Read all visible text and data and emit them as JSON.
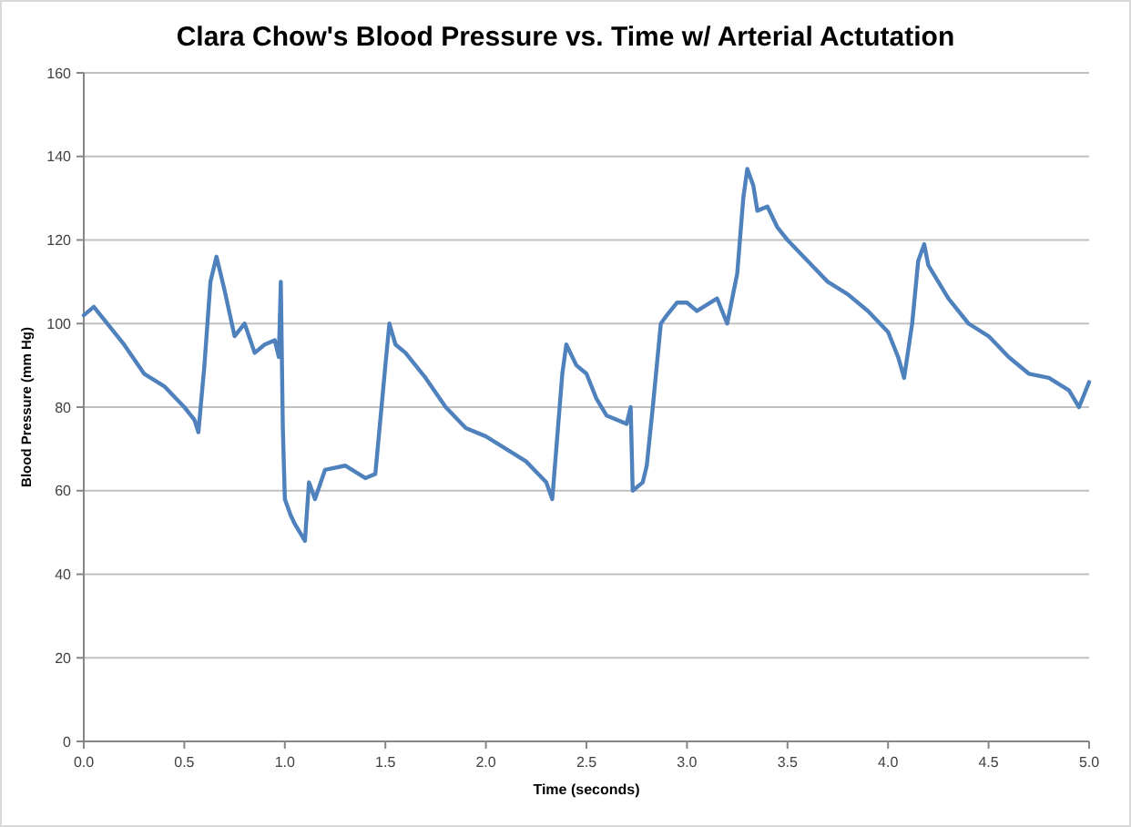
{
  "chart_data": {
    "type": "line",
    "title": "Clara Chow's Blood Pressure vs. Time w/ Arterial Actutation",
    "xlabel": "Time (seconds)",
    "ylabel": "Blood Pressure (mm Hg)",
    "x": [
      0,
      0.05,
      0.1,
      0.2,
      0.3,
      0.4,
      0.5,
      0.55,
      0.57,
      0.6,
      0.63,
      0.66,
      0.7,
      0.75,
      0.8,
      0.85,
      0.9,
      0.95,
      0.97,
      0.98,
      0.99,
      1.0,
      1.03,
      1.05,
      1.1,
      1.12,
      1.15,
      1.2,
      1.3,
      1.4,
      1.45,
      1.5,
      1.52,
      1.55,
      1.6,
      1.7,
      1.8,
      1.9,
      2.0,
      2.1,
      2.2,
      2.3,
      2.33,
      2.38,
      2.4,
      2.45,
      2.5,
      2.55,
      2.6,
      2.7,
      2.72,
      2.73,
      2.78,
      2.8,
      2.83,
      2.85,
      2.87,
      2.9,
      2.95,
      3.0,
      3.05,
      3.15,
      3.2,
      3.25,
      3.28,
      3.3,
      3.33,
      3.35,
      3.4,
      3.45,
      3.5,
      3.6,
      3.7,
      3.8,
      3.9,
      4.0,
      4.05,
      4.08,
      4.12,
      4.15,
      4.18,
      4.2,
      4.3,
      4.4,
      4.5,
      4.6,
      4.7,
      4.8,
      4.9,
      4.95,
      5.0
    ],
    "series": [
      {
        "color": "#4f81bd",
        "values": [
          102,
          104,
          101,
          95,
          88,
          85,
          80,
          77,
          74,
          90,
          110,
          116,
          108,
          97,
          100,
          93,
          95,
          96,
          92,
          110,
          75,
          58,
          54,
          52,
          48,
          62,
          58,
          65,
          66,
          63,
          64,
          90,
          100,
          95,
          93,
          87,
          80,
          75,
          73,
          70,
          67,
          62,
          58,
          88,
          95,
          90,
          88,
          82,
          78,
          76,
          80,
          60,
          62,
          66,
          80,
          90,
          100,
          102,
          105,
          105,
          103,
          106,
          100,
          112,
          130,
          137,
          133,
          127,
          128,
          123,
          120,
          115,
          110,
          107,
          103,
          98,
          92,
          87,
          100,
          115,
          119,
          114,
          106,
          100,
          97,
          92,
          88,
          87,
          84,
          80,
          86
        ]
      }
    ],
    "xlim": [
      0,
      5
    ],
    "xticks": [
      {
        "value": 0,
        "label": "0.0"
      },
      {
        "value": 0.5,
        "label": "0.5"
      },
      {
        "value": 1,
        "label": "1.0"
      },
      {
        "value": 1.5,
        "label": "1.5"
      },
      {
        "value": 2,
        "label": "2.0"
      },
      {
        "value": 2.5,
        "label": "2.5"
      },
      {
        "value": 3,
        "label": "3.0"
      },
      {
        "value": 3.5,
        "label": "3.5"
      },
      {
        "value": 4,
        "label": "4.0"
      },
      {
        "value": 4.5,
        "label": "4.5"
      },
      {
        "value": 5,
        "label": "5.0"
      }
    ],
    "ylim": [
      0,
      160
    ],
    "yticks": [
      0,
      20,
      40,
      60,
      80,
      100,
      120,
      140,
      160
    ],
    "grid": "y"
  }
}
